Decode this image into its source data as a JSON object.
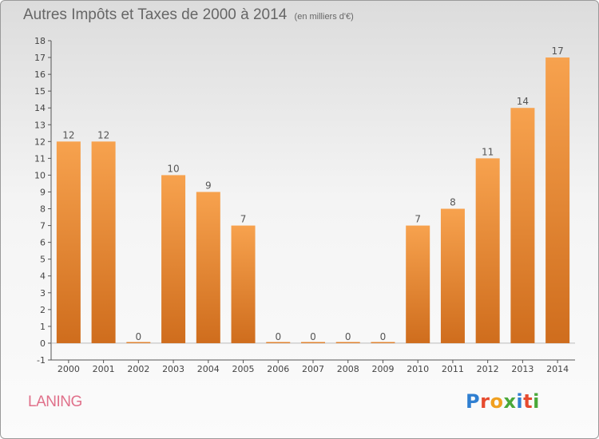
{
  "title": {
    "main": "Autres Impôts et Taxes de 2000 à 2014",
    "unit": "(en milliers d'€)"
  },
  "commune": "LANING",
  "logo": {
    "letters": [
      "P",
      "r",
      "o",
      "x",
      "i",
      "t",
      "i"
    ],
    "colors": [
      "#2f7fd1",
      "#e64b2f",
      "#f0a020",
      "#4aa83a",
      "#2f7fd1",
      "#e64b2f",
      "#4aa83a"
    ]
  },
  "colors": {
    "bar_top": "#f7a24e",
    "bar_bottom": "#cf6d1d"
  },
  "chart_data": {
    "type": "bar",
    "categories": [
      "2000",
      "2001",
      "2002",
      "2003",
      "2004",
      "2005",
      "2006",
      "2007",
      "2008",
      "2009",
      "2010",
      "2011",
      "2012",
      "2013",
      "2014"
    ],
    "values": [
      12,
      12,
      0,
      10,
      9,
      7,
      0,
      0,
      0,
      0,
      7,
      8,
      11,
      14,
      17
    ],
    "title": "Autres Impôts et Taxes de 2000 à 2014",
    "ylim": [
      -1,
      18
    ],
    "yticks": [
      "-1",
      "0",
      "1",
      "2",
      "3",
      "4",
      "5",
      "6",
      "7",
      "8",
      "9",
      "10",
      "11",
      "12",
      "13",
      "14",
      "15",
      "16",
      "17",
      "18"
    ],
    "grid": false
  }
}
